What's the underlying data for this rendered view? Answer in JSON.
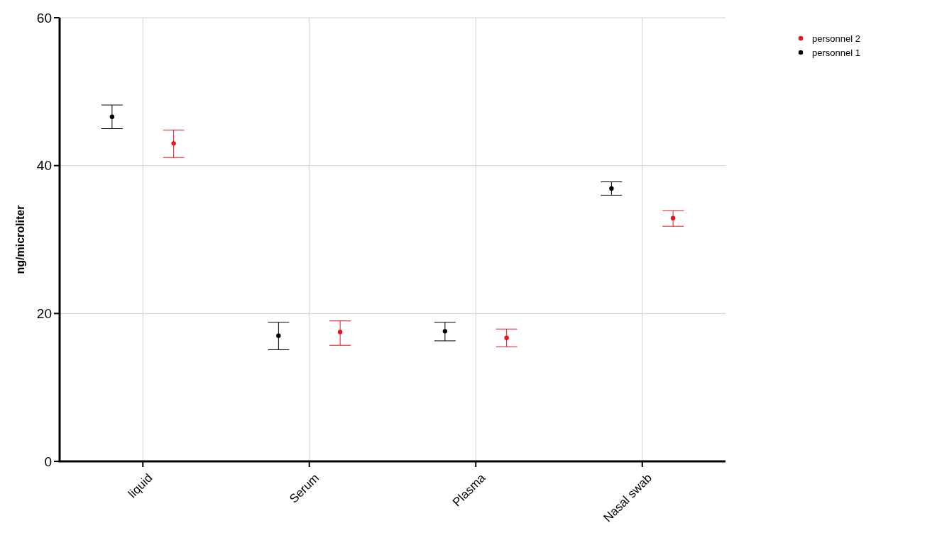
{
  "chart_data": {
    "type": "scatter",
    "ylabel": "ng/microliter",
    "categories": [
      "liquid",
      "Serum",
      "Plasma",
      "Nasal swab"
    ],
    "ylim": [
      0,
      60
    ],
    "yticks": [
      0,
      20,
      40,
      60
    ],
    "grid": true,
    "legend": "top right",
    "marker": "circle",
    "series": [
      {
        "name": "personnel 1",
        "color": "#000000",
        "values": [
          46.6,
          17.0,
          17.6,
          36.9
        ],
        "errors": [
          [
            45.0,
            48.2
          ],
          [
            15.1,
            18.8
          ],
          [
            16.3,
            18.8
          ],
          [
            36.0,
            37.8
          ]
        ]
      },
      {
        "name": "personnel 2",
        "color": "#e8141c",
        "values": [
          43.0,
          17.5,
          16.7,
          32.9
        ],
        "errors": [
          [
            41.1,
            44.8
          ],
          [
            15.7,
            19.0
          ],
          [
            15.5,
            17.9
          ],
          [
            31.8,
            33.9
          ]
        ]
      }
    ]
  }
}
